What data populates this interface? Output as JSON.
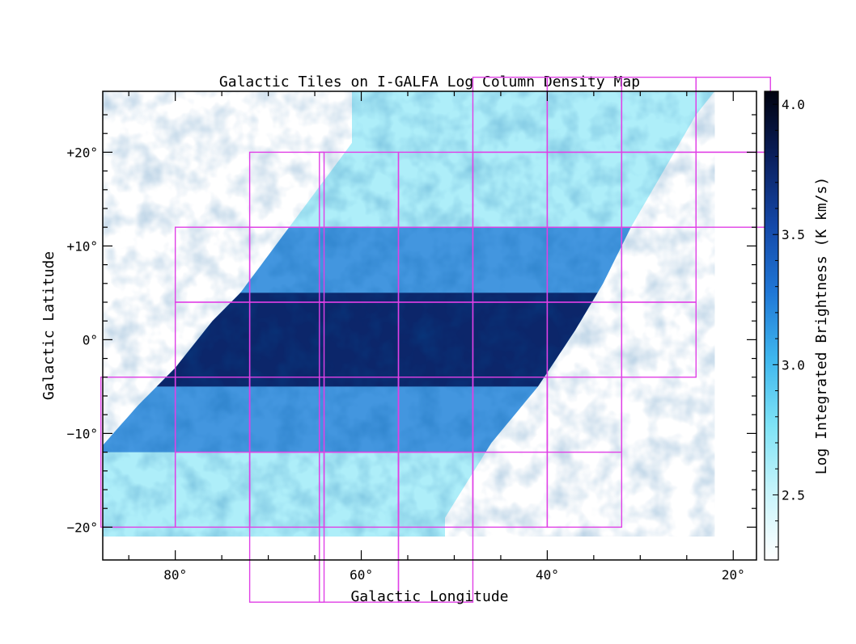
{
  "chart_data": {
    "type": "heatmap",
    "title": "Galactic Tiles on I-GALFA Log Column Density Map",
    "xlabel": "Galactic Longitude",
    "ylabel": "Galactic Latitude",
    "xlim": [
      87.8,
      17.5
    ],
    "ylim": [
      -23.5,
      26.5
    ],
    "x_ticks": [
      {
        "value": 80,
        "label": "80°"
      },
      {
        "value": 60,
        "label": "60°"
      },
      {
        "value": 40,
        "label": "40°"
      },
      {
        "value": 20,
        "label": "20°"
      }
    ],
    "y_ticks": [
      {
        "value": 20,
        "label": "+20°"
      },
      {
        "value": 10,
        "label": "+10°"
      },
      {
        "value": 0,
        "label": "0°"
      },
      {
        "value": -10,
        "label": "−10°"
      },
      {
        "value": -20,
        "label": "−20°"
      }
    ],
    "colorbar": {
      "label": "Log Integrated Brightness (K km/s)",
      "range": [
        2.25,
        4.05
      ],
      "ticks": [
        {
          "value": 4.0,
          "label": "4.0"
        },
        {
          "value": 3.5,
          "label": "3.5"
        },
        {
          "value": 3.0,
          "label": "3.0"
        },
        {
          "value": 2.5,
          "label": "2.5"
        }
      ],
      "colors": [
        "#ffffff",
        "#c8f4fb",
        "#7fe3f6",
        "#3fb7ee",
        "#1f77d6",
        "#1448a8",
        "#0a1f5e",
        "#00020f"
      ]
    },
    "map": {
      "peak_value": 3.95,
      "midplane_value": 3.75,
      "high_latitude_value": 2.6,
      "band_half_width_deg": 5
    },
    "survey_edges": [
      {
        "name": "east-edge",
        "points": [
          [
            88,
            -11.5
          ],
          [
            84,
            -7
          ],
          [
            80,
            -3
          ],
          [
            76,
            2
          ],
          [
            73,
            5
          ],
          [
            70,
            9
          ],
          [
            67,
            13
          ],
          [
            64,
            17
          ],
          [
            61,
            21
          ]
        ]
      },
      {
        "name": "west-edge",
        "points": [
          [
            51,
            -19
          ],
          [
            46,
            -11
          ],
          [
            41,
            -5
          ],
          [
            37,
            1
          ],
          [
            34,
            6
          ],
          [
            31,
            12
          ],
          [
            27.5,
            18
          ],
          [
            24,
            24
          ],
          [
            22,
            26.5
          ]
        ]
      }
    ],
    "tile_color": "#e040e6",
    "tiles": [
      {
        "lon": [
          88,
          80
        ],
        "lat": [
          -20,
          -4
        ]
      },
      {
        "lon": [
          80,
          72
        ],
        "lat": [
          -20,
          -4
        ]
      },
      {
        "lon": [
          80,
          72
        ],
        "lat": [
          -12,
          4
        ]
      },
      {
        "lon": [
          80,
          72
        ],
        "lat": [
          4,
          12
        ]
      },
      {
        "lon": [
          72,
          64
        ],
        "lat": [
          -28,
          -12
        ]
      },
      {
        "lon": [
          72,
          64
        ],
        "lat": [
          -20,
          -4
        ]
      },
      {
        "lon": [
          72,
          64
        ],
        "lat": [
          -12,
          4
        ]
      },
      {
        "lon": [
          72,
          64
        ],
        "lat": [
          4,
          12
        ]
      },
      {
        "lon": [
          72,
          64
        ],
        "lat": [
          12,
          20
        ]
      },
      {
        "lon": [
          64.5,
          56
        ],
        "lat": [
          -28,
          -12
        ]
      },
      {
        "lon": [
          64.5,
          56
        ],
        "lat": [
          -20,
          -4
        ]
      },
      {
        "lon": [
          64.5,
          56
        ],
        "lat": [
          -12,
          4
        ]
      },
      {
        "lon": [
          64.5,
          56
        ],
        "lat": [
          4,
          12
        ]
      },
      {
        "lon": [
          64.5,
          56
        ],
        "lat": [
          12,
          20
        ]
      },
      {
        "lon": [
          56,
          48
        ],
        "lat": [
          -28,
          -12
        ]
      },
      {
        "lon": [
          56,
          48
        ],
        "lat": [
          -20,
          -4
        ]
      },
      {
        "lon": [
          56,
          48
        ],
        "lat": [
          -12,
          4
        ]
      },
      {
        "lon": [
          56,
          48
        ],
        "lat": [
          4,
          12
        ]
      },
      {
        "lon": [
          56,
          48
        ],
        "lat": [
          12,
          20
        ]
      },
      {
        "lon": [
          48,
          40
        ],
        "lat": [
          -20,
          -4
        ]
      },
      {
        "lon": [
          48,
          40
        ],
        "lat": [
          -12,
          4
        ]
      },
      {
        "lon": [
          48,
          40
        ],
        "lat": [
          4,
          12
        ]
      },
      {
        "lon": [
          48,
          40
        ],
        "lat": [
          12,
          20
        ]
      },
      {
        "lon": [
          48,
          40
        ],
        "lat": [
          20,
          28
        ]
      },
      {
        "lon": [
          40,
          32
        ],
        "lat": [
          -20,
          -4
        ]
      },
      {
        "lon": [
          40,
          32
        ],
        "lat": [
          -12,
          4
        ]
      },
      {
        "lon": [
          40,
          32
        ],
        "lat": [
          4,
          12
        ]
      },
      {
        "lon": [
          40,
          32
        ],
        "lat": [
          12,
          20
        ]
      },
      {
        "lon": [
          40,
          32
        ],
        "lat": [
          20,
          28
        ]
      },
      {
        "lon": [
          32,
          24
        ],
        "lat": [
          -4,
          4
        ]
      },
      {
        "lon": [
          32,
          24
        ],
        "lat": [
          4,
          12
        ]
      },
      {
        "lon": [
          32,
          24
        ],
        "lat": [
          12,
          20
        ]
      },
      {
        "lon": [
          32,
          24
        ],
        "lat": [
          20,
          28
        ]
      },
      {
        "lon": [
          24,
          16
        ],
        "lat": [
          12,
          20
        ]
      },
      {
        "lon": [
          24,
          16
        ],
        "lat": [
          20,
          28
        ]
      }
    ]
  }
}
